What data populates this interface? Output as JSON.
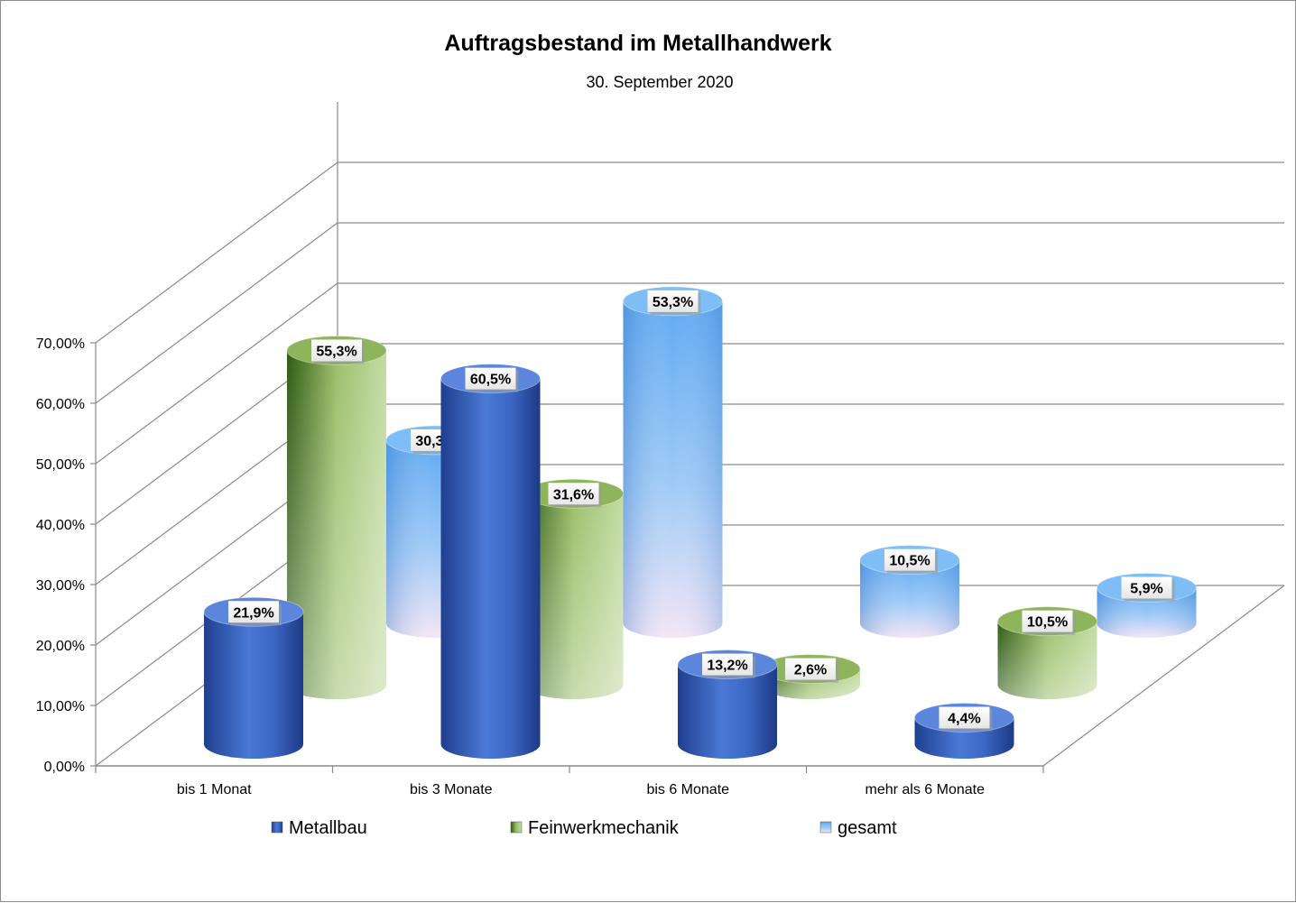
{
  "chart_data": {
    "type": "bar",
    "style": "3d-cylinder",
    "title": "Auftragsbestand im Metallhandwerk",
    "subtitle": "30. September 2020",
    "categories": [
      "bis 1 Monat",
      "bis 3 Monate",
      "bis 6 Monate",
      "mehr als 6 Monate"
    ],
    "series": [
      {
        "name": "Metallbau",
        "color": "#3a64c4",
        "values": [
          21.9,
          60.5,
          13.2,
          4.4
        ],
        "labels": [
          "21,9%",
          "60,5%",
          "13,2%",
          "4,4%"
        ]
      },
      {
        "name": "Feinwerkmechanik",
        "color": "#6e9b3a",
        "values": [
          55.3,
          31.6,
          2.6,
          10.5
        ],
        "labels": [
          "55,3%",
          "31,6%",
          "2,6%",
          "10,5%"
        ]
      },
      {
        "name": "gesamt",
        "color": "#6fb0f0",
        "values": [
          30.3,
          53.3,
          10.5,
          5.9
        ],
        "labels": [
          "30,3%",
          "53,3%",
          "10,5%",
          "5,9%"
        ]
      }
    ],
    "yticks": [
      "0,00%",
      "10,00%",
      "20,00%",
      "30,00%",
      "40,00%",
      "50,00%",
      "60,00%",
      "70,00%"
    ],
    "ylim": [
      0,
      70
    ],
    "grid": true,
    "legend": "bottom"
  }
}
